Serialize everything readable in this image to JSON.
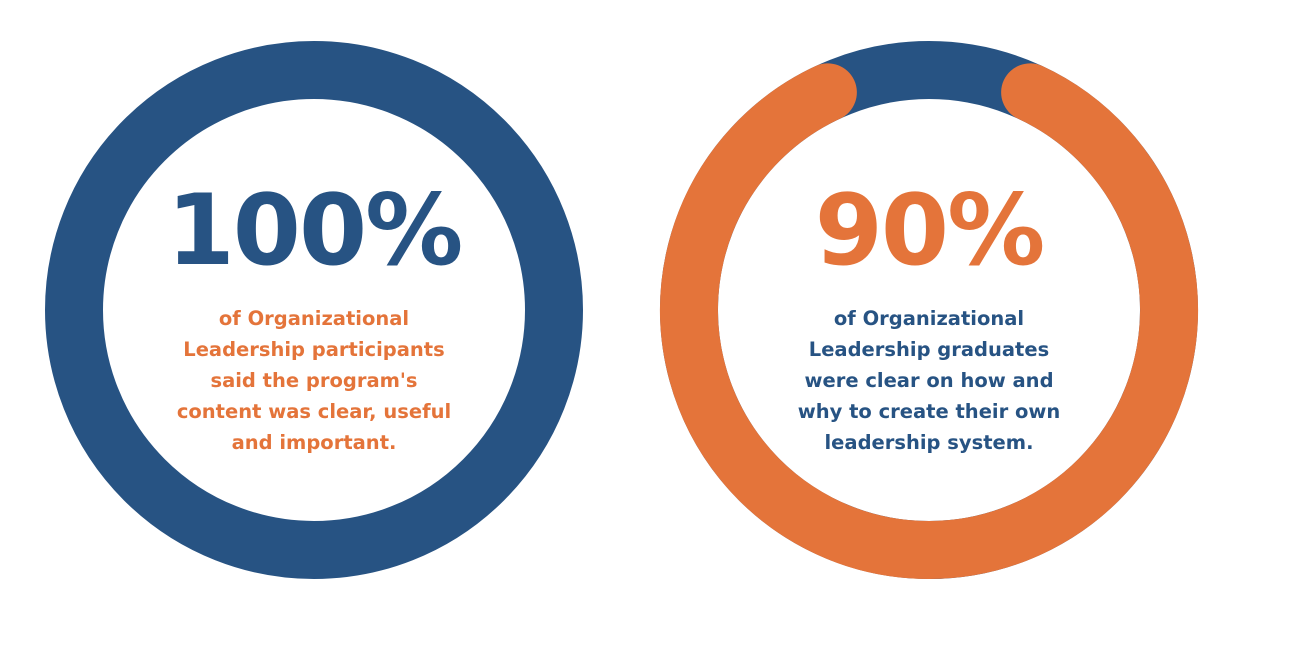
{
  "colors": {
    "blue": "#275383",
    "orange": "#E4743A"
  },
  "chart_data": [
    {
      "type": "donut",
      "value_percent": 100,
      "value_label": "100%",
      "value_color": "#275383",
      "ring_color": "#275383",
      "track_color": "#275383",
      "caption_color": "#E4743A",
      "caption_lines": [
        "of Organizational",
        "Leadership participants",
        "said the program's",
        "content was clear, useful",
        "and important."
      ]
    },
    {
      "type": "donut",
      "value_percent": 90,
      "value_label": "90%",
      "value_color": "#E4743A",
      "ring_color": "#E4743A",
      "track_color": "#275383",
      "caption_color": "#275383",
      "caption_lines": [
        "of Organizational",
        "Leadership graduates",
        "were clear on how and",
        "why to create their own",
        "leadership system."
      ]
    }
  ]
}
